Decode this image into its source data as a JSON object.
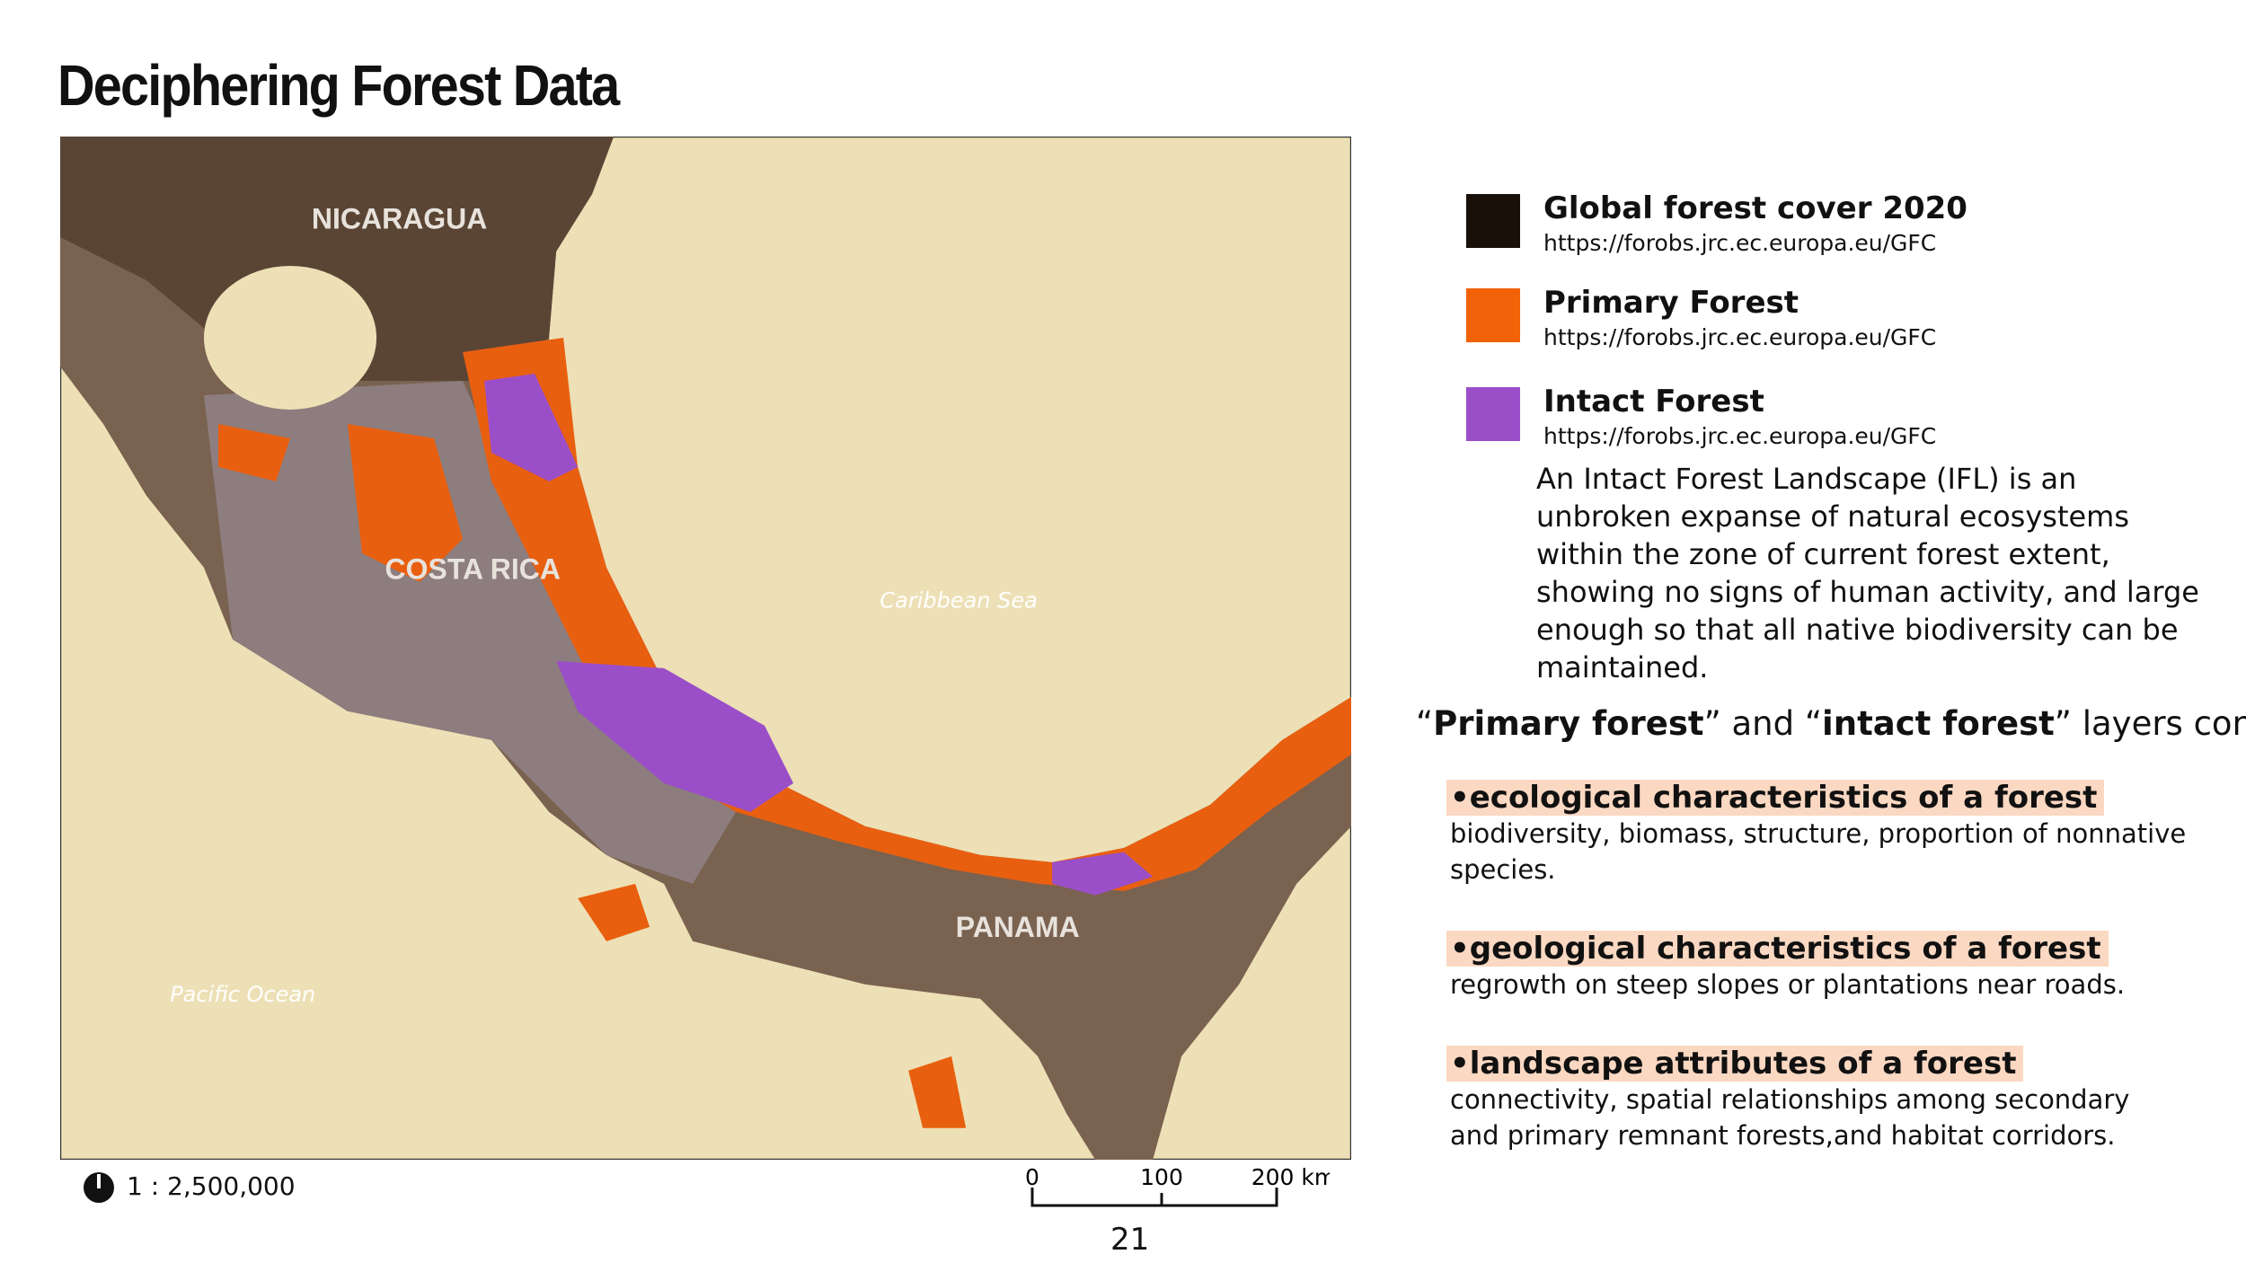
{
  "header": {
    "title": "Deciphering Forest Data"
  },
  "map": {
    "labels": {
      "nicaragua": "NICARAGUA",
      "costa_rica": "COSTA RICA",
      "panama": "PANAMA",
      "caribbean": "Caribbean Sea",
      "pacific": "Pacific Ocean"
    },
    "scale": "1 : 2,500,000",
    "scale_bar": [
      "0",
      "100",
      "200 km"
    ]
  },
  "legend": [
    {
      "title": "Global forest cover 2020",
      "source": "https://forobs.jrc.ec.europa.eu/GFC"
    },
    {
      "title": "Primary Forest",
      "source": "https://forobs.jrc.ec.europa.eu/GFC"
    },
    {
      "title": "Intact Forest",
      "source": "https://forobs.jrc.ec.europa.eu/GFC"
    }
  ],
  "description": "An Intact Forest Landscape (IFL) is an unbroken expanse of natural ecosystems within the zone of current forest extent, showing no signs of human activity, and large enough so that all native biodiversity can be maintained.",
  "considerations": {
    "intro": [
      "“",
      "Primary forest",
      "” and “",
      "intact forest",
      "” layers consider:"
    ],
    "items": [
      {
        "heading": "•ecological characteristics of a forest",
        "text": "biodiversity, biomass, structure, proportion of nonnative species."
      },
      {
        "heading": "•geological characteristics of a forest",
        "text": "regrowth on steep slopes or plantations near roads."
      },
      {
        "heading": "•landscape attributes of a forest",
        "text": "connectivity, spatial relationships among secondary and primary remnant forests,and habitat corridors."
      }
    ]
  },
  "page_number": "21"
}
